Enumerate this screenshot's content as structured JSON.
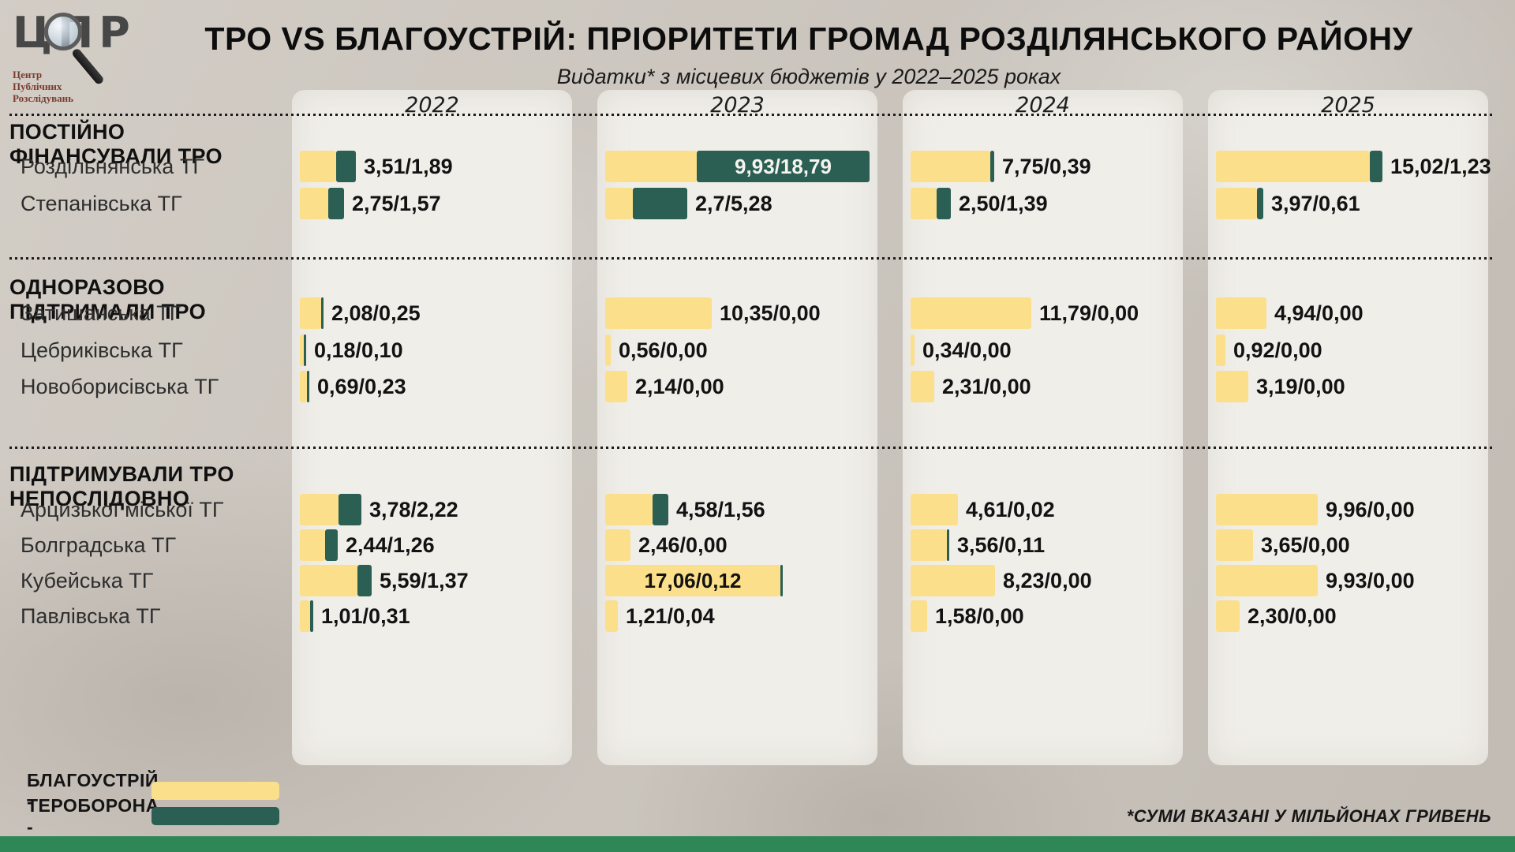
{
  "header": {
    "title": "ТРО VS БЛАГОУСТРІЙ: ПРІОРИТЕТИ ГРОМАД РОЗДІЛЯНСЬКОГО РАЙОНУ",
    "subtitle": "Видатки* з місцевих бюджетів у 2022–2025 роках"
  },
  "logo": {
    "acronym": "ЦПР",
    "caption_line1": "Центр",
    "caption_line2": "Публічних",
    "caption_line3": "Розслідувань"
  },
  "legend": {
    "improvement_label": "БЛАГОУСТРІЙ -",
    "defense_label": "ТЕРОБОРОНА -"
  },
  "footnote": "*СУМИ ВКАЗАНІ У МІЛЬЙОНАХ ГРИВЕНЬ",
  "colors": {
    "improvement": "#FBDF8B",
    "defense": "#2B5F53",
    "panel": "#F0EEE9",
    "background": "#CDC7BF",
    "bottom_strip": "#2F8757"
  },
  "chart_data": {
    "type": "bar",
    "unit": "млн грн",
    "years": [
      "2022",
      "2023",
      "2024",
      "2025"
    ],
    "legend": [
      "БЛАГОУСТРІЙ",
      "ТЕРОБОРОНА"
    ],
    "value_format": "благоустрій/тероборона",
    "groups": [
      {
        "label": "ПОСТІЙНО ФІНАНСУВАЛИ ТРО",
        "rows": [
          {
            "name": "Роздільнянська ТГ",
            "cells": [
              {
                "improvement": 3.51,
                "defense": 1.89,
                "label": "3,51/1,89"
              },
              {
                "improvement": 9.93,
                "defense": 18.79,
                "label": "9,93/18,79",
                "label_inside": "defense"
              },
              {
                "improvement": 7.75,
                "defense": 0.39,
                "label": "7,75/0,39"
              },
              {
                "improvement": 15.02,
                "defense": 1.23,
                "label": "15,02/1,23"
              }
            ]
          },
          {
            "name": "Степанівська ТГ",
            "cells": [
              {
                "improvement": 2.75,
                "defense": 1.57,
                "label": "2,75/1,57"
              },
              {
                "improvement": 2.7,
                "defense": 5.28,
                "label": "2,7/5,28"
              },
              {
                "improvement": 2.5,
                "defense": 1.39,
                "label": "2,50/1,39"
              },
              {
                "improvement": 3.97,
                "defense": 0.61,
                "label": "3,97/0,61"
              }
            ]
          }
        ]
      },
      {
        "label": "ОДНОРАЗОВО ПІДТРИМАЛИ ТРО",
        "rows": [
          {
            "name": "Затишанська ТГ",
            "cells": [
              {
                "improvement": 2.08,
                "defense": 0.25,
                "label": "2,08/0,25"
              },
              {
                "improvement": 10.35,
                "defense": 0,
                "label": "10,35/0,00"
              },
              {
                "improvement": 11.79,
                "defense": 0,
                "label": "11,79/0,00"
              },
              {
                "improvement": 4.94,
                "defense": 0,
                "label": "4,94/0,00"
              }
            ]
          },
          {
            "name": "Цебриківська ТГ",
            "cells": [
              {
                "improvement": 0.18,
                "defense": 0.1,
                "label": "0,18/0,10"
              },
              {
                "improvement": 0.56,
                "defense": 0,
                "label": "0,56/0,00"
              },
              {
                "improvement": 0.34,
                "defense": 0,
                "label": "0,34/0,00"
              },
              {
                "improvement": 0.92,
                "defense": 0,
                "label": "0,92/0,00"
              }
            ]
          },
          {
            "name": "Новоборисівська ТГ",
            "cells": [
              {
                "improvement": 0.69,
                "defense": 0.23,
                "label": "0,69/0,23"
              },
              {
                "improvement": 2.14,
                "defense": 0,
                "label": "2,14/0,00"
              },
              {
                "improvement": 2.31,
                "defense": 0,
                "label": "2,31/0,00"
              },
              {
                "improvement": 3.19,
                "defense": 0,
                "label": "3,19/0,00"
              }
            ]
          }
        ]
      },
      {
        "label": "ПІДТРИМУВАЛИ ТРО НЕПОСЛІДОВНО",
        "rows": [
          {
            "name": "Арцизької міської ТГ",
            "cells": [
              {
                "improvement": 3.78,
                "defense": 2.22,
                "label": "3,78/2,22"
              },
              {
                "improvement": 4.58,
                "defense": 1.56,
                "label": "4,58/1,56"
              },
              {
                "improvement": 4.61,
                "defense": 0.02,
                "label": "4,61/0,02"
              },
              {
                "improvement": 9.96,
                "defense": 0,
                "label": "9,96/0,00"
              }
            ]
          },
          {
            "name": "Болградська ТГ",
            "cells": [
              {
                "improvement": 2.44,
                "defense": 1.26,
                "label": "2,44/1,26"
              },
              {
                "improvement": 2.46,
                "defense": 0,
                "label": "2,46/0,00"
              },
              {
                "improvement": 3.56,
                "defense": 0.11,
                "label": "3,56/0,11"
              },
              {
                "improvement": 3.65,
                "defense": 0,
                "label": "3,65/0,00"
              }
            ]
          },
          {
            "name": "Кубейська ТГ",
            "cells": [
              {
                "improvement": 5.59,
                "defense": 1.37,
                "label": "5,59/1,37"
              },
              {
                "improvement": 17.06,
                "defense": 0.12,
                "label": "17,06/0,12",
                "label_inside": "improvement"
              },
              {
                "improvement": 8.23,
                "defense": 0,
                "label": "8,23/0,00"
              },
              {
                "improvement": 9.93,
                "defense": 0,
                "label": "9,93/0,00"
              }
            ]
          },
          {
            "name": "Павлівська ТГ",
            "cells": [
              {
                "improvement": 1.01,
                "defense": 0.31,
                "label": "1,01/0,31"
              },
              {
                "improvement": 1.21,
                "defense": 0.04,
                "label": "1,21/0,04"
              },
              {
                "improvement": 1.58,
                "defense": 0,
                "label": "1,58/0,00"
              },
              {
                "improvement": 2.3,
                "defense": 0,
                "label": "2,30/0,00"
              }
            ]
          }
        ]
      }
    ]
  }
}
